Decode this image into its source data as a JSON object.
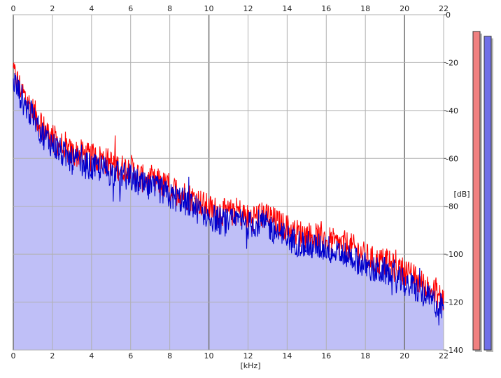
{
  "chart_data": {
    "type": "area",
    "title": "",
    "xlabel": "[kHz]",
    "ylabel": "[dB]",
    "xlim": [
      0,
      22
    ],
    "ylim": [
      -140,
      0
    ],
    "x_ticks": [
      "0",
      "2",
      "4",
      "6",
      "8",
      "10",
      "12",
      "14",
      "16",
      "18",
      "20",
      "22"
    ],
    "y_ticks": [
      "0",
      "-20",
      "-40",
      "-60",
      "-80",
      "-100",
      "-120",
      "-140"
    ],
    "grid": true,
    "fill_color": "#bfbff7",
    "series": [
      {
        "color": "#ff0000",
        "x": [
          0,
          0.5,
          1,
          1.5,
          2,
          2.5,
          3,
          3.5,
          4,
          4.5,
          5,
          5.5,
          6,
          6.5,
          7,
          7.5,
          8,
          8.5,
          9,
          9.5,
          10,
          10.5,
          11,
          11.5,
          12,
          12.5,
          13,
          13.5,
          14,
          14.5,
          15,
          15.5,
          16,
          16.5,
          17,
          17.5,
          18,
          18.5,
          19,
          19.5,
          20,
          20.5,
          21,
          21.5,
          22
        ],
        "values": [
          -24,
          -33,
          -40,
          -47,
          -51,
          -55,
          -58,
          -58,
          -60,
          -60,
          -62,
          -64,
          -64,
          -68,
          -70,
          -70,
          -73,
          -74,
          -76,
          -78,
          -81,
          -82,
          -83,
          -82,
          -85,
          -84,
          -84,
          -87,
          -89,
          -91,
          -92,
          -93,
          -93,
          -96,
          -96,
          -98,
          -101,
          -103,
          -103,
          -106,
          -107,
          -110,
          -113,
          -116,
          -119
        ]
      },
      {
        "color": "#0000cc",
        "x": [
          0,
          0.5,
          1,
          1.5,
          2,
          2.5,
          3,
          3.5,
          4,
          4.5,
          5,
          5.5,
          6,
          6.5,
          7,
          7.5,
          8,
          8.5,
          9,
          9.5,
          10,
          10.5,
          11,
          11.5,
          12,
          12.5,
          13,
          13.5,
          14,
          14.5,
          15,
          15.5,
          16,
          16.5,
          17,
          17.5,
          18,
          18.5,
          19,
          19.5,
          20,
          20.5,
          21,
          21.5,
          22
        ],
        "values": [
          -27,
          -36,
          -43,
          -50,
          -54,
          -58,
          -61,
          -62,
          -64,
          -64,
          -66,
          -67,
          -68,
          -71,
          -73,
          -73,
          -76,
          -77,
          -79,
          -82,
          -84,
          -86,
          -87,
          -86,
          -88,
          -87,
          -88,
          -91,
          -93,
          -95,
          -96,
          -97,
          -97,
          -100,
          -100,
          -102,
          -105,
          -107,
          -107,
          -110,
          -112,
          -114,
          -117,
          -120,
          -123
        ]
      }
    ],
    "level_meters": [
      {
        "color": "#f08080",
        "value_db": -7
      },
      {
        "color": "#7070e8",
        "value_db": -9
      }
    ]
  }
}
